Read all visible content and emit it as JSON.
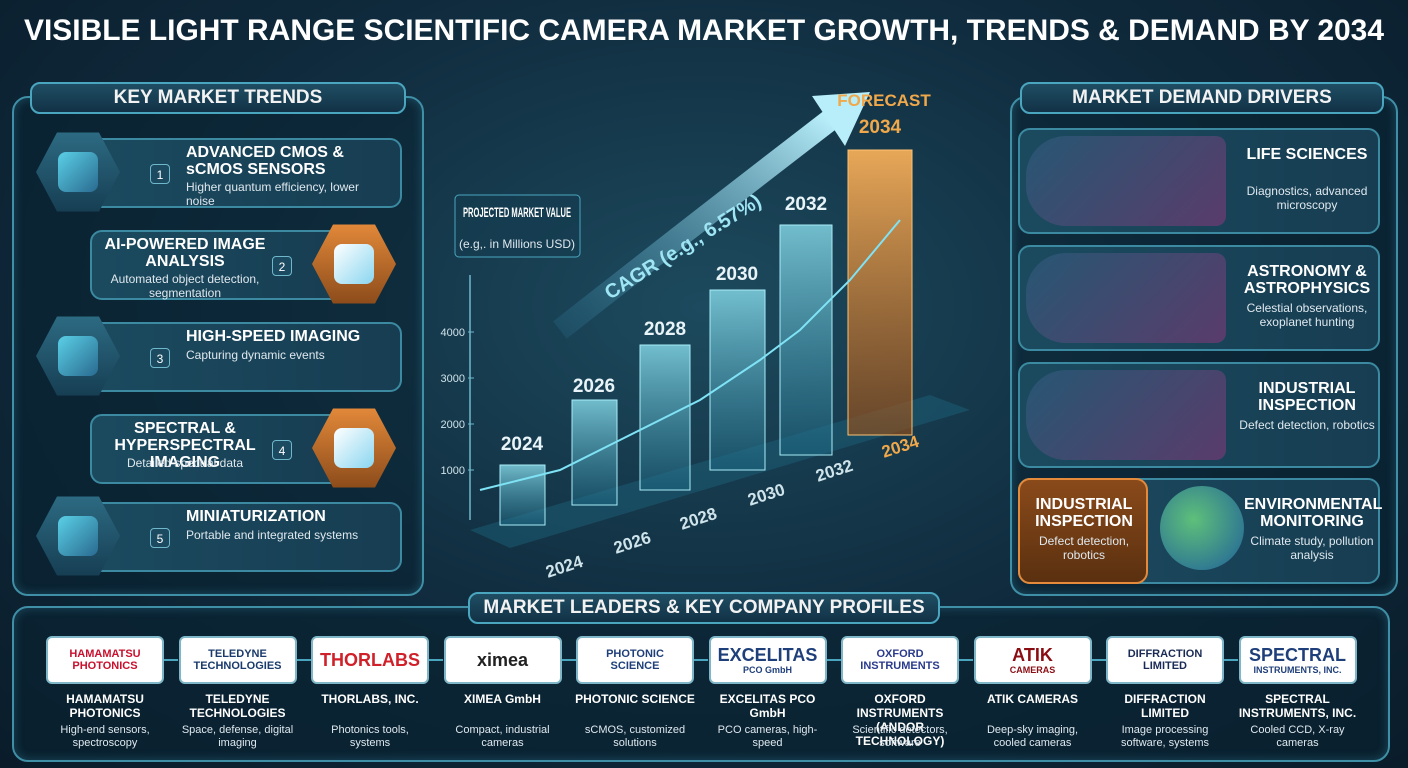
{
  "title": "VISIBLE LIGHT RANGE SCIENTIFIC CAMERA MARKET GROWTH, TRENDS & DEMAND BY 2034",
  "trends": {
    "title": "KEY MARKET TRENDS",
    "items": [
      {
        "number": 1,
        "title": "ADVANCED CMOS & sCMOS SENSORS",
        "description": "Higher quantum efficiency, lower noise"
      },
      {
        "number": 2,
        "title": "AI-POWERED IMAGE ANALYSIS",
        "description": "Automated object detection, segmentation"
      },
      {
        "number": 3,
        "title": "HIGH-SPEED IMAGING",
        "description": "Capturing dynamic events"
      },
      {
        "number": 4,
        "title": "SPECTRAL & HYPERSPECTRAL IMAGING",
        "description": "Detailed spectral data"
      },
      {
        "number": 5,
        "title": "MINIATURIZATION",
        "description": "Portable and integrated systems"
      }
    ]
  },
  "growth": {
    "forecast_label": "FORECAST",
    "forecast_year": "2034",
    "value_label": "PROJECTED MARKET VALUE",
    "value_note": "(e.g,. in Millions USD)",
    "cagr": "CAGR (e.g., 6.57%)",
    "axis_ticks": [
      1000,
      2000,
      3000,
      4000
    ],
    "bar_labels": [
      "2024",
      "2026",
      "2028",
      "2030",
      "2032"
    ],
    "axis_years": [
      "2024",
      "2026",
      "2028",
      "2030",
      "2032",
      "2034"
    ]
  },
  "drivers": {
    "title": "MARKET DEMAND DRIVERS",
    "items": [
      {
        "title": "LIFE SCIENCES",
        "description": "Diagnostics, advanced microscopy"
      },
      {
        "title": "ASTRONOMY & ASTROPHYSICS",
        "description": "Celestial observations, exoplanet hunting"
      },
      {
        "title": "INDUSTRIAL INSPECTION",
        "description": "Defect detection, robotics"
      },
      {
        "title": "INDUSTRIAL INSPECTION",
        "description": "Defect detection, robotics"
      },
      {
        "title": "ENVIRONMENTAL MONITORING",
        "description": "Climate study, pollution analysis"
      }
    ]
  },
  "leaders": {
    "title": "MARKET LEADERS & KEY COMPANY PROFILES",
    "companies": [
      {
        "logo": "HAMAMATSU PHOTONICS",
        "logo_color": "#c8102e",
        "name": "HAMAMATSU PHOTONICS",
        "description": "High-end sensors, spectroscopy"
      },
      {
        "logo": "TELEDYNE TECHNOLOGIES",
        "logo_color": "#1a3a6b",
        "name": "TELEDYNE TECHNOLOGIES",
        "description": "Space, defense, digital imaging"
      },
      {
        "logo": "THORLABS",
        "logo_color": "#d0202a",
        "name": "THORLABS, INC.",
        "description": "Photonics tools, systems"
      },
      {
        "logo": "ximea",
        "logo_color": "#222222",
        "name": "XIMEA GmbH",
        "description": "Compact, industrial cameras"
      },
      {
        "logo": "PHOTONIC SCIENCE",
        "logo_color": "#1f3f7a",
        "name": "PHOTONIC SCIENCE",
        "description": "sCMOS, customized solutions"
      },
      {
        "logo": "EXCELITAS",
        "logo_sub": "PCO GmbH",
        "logo_color": "#1f3f7a",
        "name": "EXCELITAS PCO GmbH",
        "description": "PCO cameras, high-speed"
      },
      {
        "logo": "OXFORD INSTRUMENTS",
        "logo_color": "#2a3a8c",
        "name": "OXFORD INSTRUMENTS (ANDOR TECHNOLOGY)",
        "description": "Scientific detectors, software"
      },
      {
        "logo": "ATIK",
        "logo_sub": "CAMERAS",
        "logo_color": "#8b0d14",
        "name": "ATIK CAMERAS",
        "description": "Deep-sky imaging, cooled cameras"
      },
      {
        "logo": "DIFFRACTION LIMITED",
        "logo_color": "#1a2a55",
        "name": "DIFFRACTION LIMITED",
        "description": "Image processing software, systems"
      },
      {
        "logo": "SPECTRAL",
        "logo_sub": "INSTRUMENTS, INC.",
        "logo_color": "#1f3f7a",
        "name": "SPECTRAL INSTRUMENTS, INC.",
        "description": "Cooled CCD, X-ray cameras"
      }
    ]
  }
}
